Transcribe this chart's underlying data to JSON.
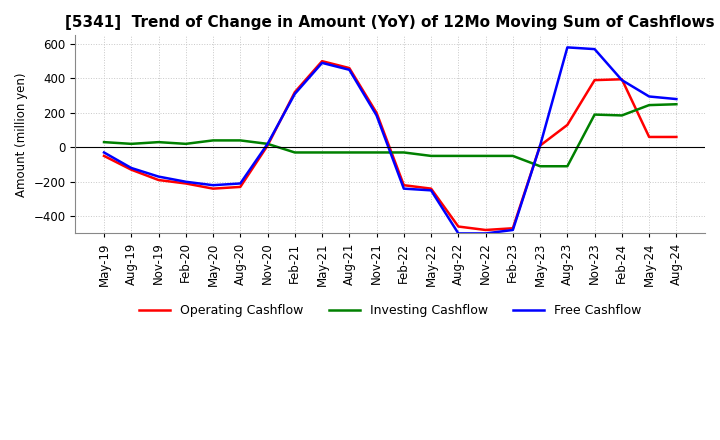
{
  "title": "[5341]  Trend of Change in Amount (YoY) of 12Mo Moving Sum of Cashflows",
  "ylabel": "Amount (million yen)",
  "ylim": [
    -500,
    650
  ],
  "yticks": [
    -400,
    -200,
    0,
    200,
    400,
    600
  ],
  "x_labels": [
    "May-19",
    "Aug-19",
    "Nov-19",
    "Feb-20",
    "May-20",
    "Aug-20",
    "Nov-20",
    "Feb-21",
    "May-21",
    "Aug-21",
    "Nov-21",
    "Feb-22",
    "May-22",
    "Aug-22",
    "Nov-22",
    "Feb-23",
    "May-23",
    "Aug-23",
    "Nov-23",
    "Feb-24",
    "May-24",
    "Aug-24"
  ],
  "operating": [
    -50,
    -130,
    -190,
    -210,
    -240,
    -230,
    10,
    320,
    500,
    460,
    200,
    -220,
    -240,
    -460,
    -480,
    -470,
    10,
    130,
    390,
    395,
    60,
    60
  ],
  "investing": [
    30,
    20,
    30,
    20,
    40,
    40,
    20,
    -30,
    -30,
    -30,
    -30,
    -30,
    -50,
    -50,
    -50,
    -50,
    -110,
    -110,
    190,
    185,
    245,
    250
  ],
  "free": [
    -30,
    -120,
    -170,
    -200,
    -220,
    -210,
    20,
    310,
    490,
    450,
    185,
    -240,
    -250,
    -500,
    -500,
    -480,
    10,
    580,
    570,
    390,
    295,
    280
  ],
  "operating_color": "#ff0000",
  "investing_color": "#008000",
  "free_color": "#0000ff",
  "grid_color": "#c8c8c8",
  "bg_color": "#ffffff",
  "title_fontsize": 11,
  "label_fontsize": 8.5,
  "tick_fontsize": 8.5,
  "legend_fontsize": 9
}
